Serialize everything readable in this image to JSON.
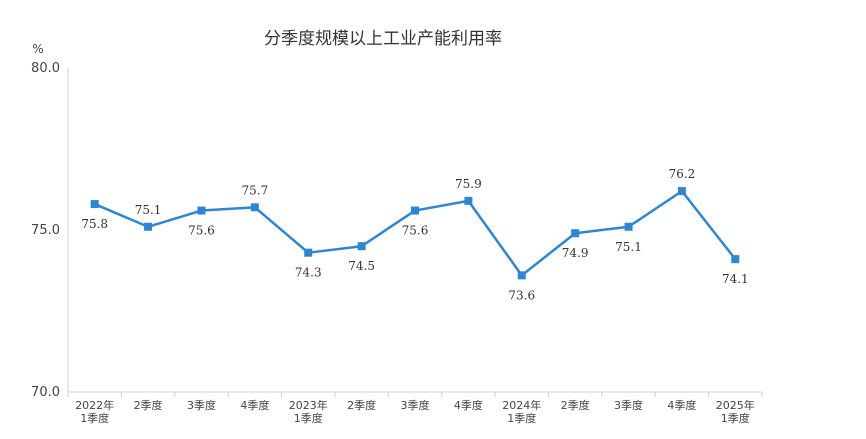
{
  "chart_data": {
    "type": "line",
    "title": "分季度规模以上工业产能利用率",
    "ylabel": "%",
    "ylim": [
      70.0,
      80.0
    ],
    "yticks": [
      "70.0",
      "75.0",
      "80.0"
    ],
    "grid": false,
    "legend": "none",
    "color": "#2E86D1",
    "categories": [
      [
        "2022年",
        "1季度"
      ],
      [
        "2季度"
      ],
      [
        "3季度"
      ],
      [
        "4季度"
      ],
      [
        "2023年",
        "1季度"
      ],
      [
        "2季度"
      ],
      [
        "3季度"
      ],
      [
        "4季度"
      ],
      [
        "2024年",
        "1季度"
      ],
      [
        "2季度"
      ],
      [
        "3季度"
      ],
      [
        "4季度"
      ],
      [
        "2025年",
        "1季度"
      ]
    ],
    "values": [
      75.8,
      75.1,
      75.6,
      75.7,
      74.3,
      74.5,
      75.6,
      75.9,
      73.6,
      74.9,
      75.1,
      76.2,
      74.1
    ],
    "labels": [
      "75.8",
      "75.1",
      "75.6",
      "75.7",
      "74.3",
      "74.5",
      "75.6",
      "75.9",
      "73.6",
      "74.9",
      "75.1",
      "76.2",
      "74.1"
    ],
    "label_position": [
      "below",
      "above",
      "below",
      "above",
      "below",
      "below",
      "below",
      "above",
      "below",
      "below",
      "below",
      "above",
      "below"
    ]
  }
}
